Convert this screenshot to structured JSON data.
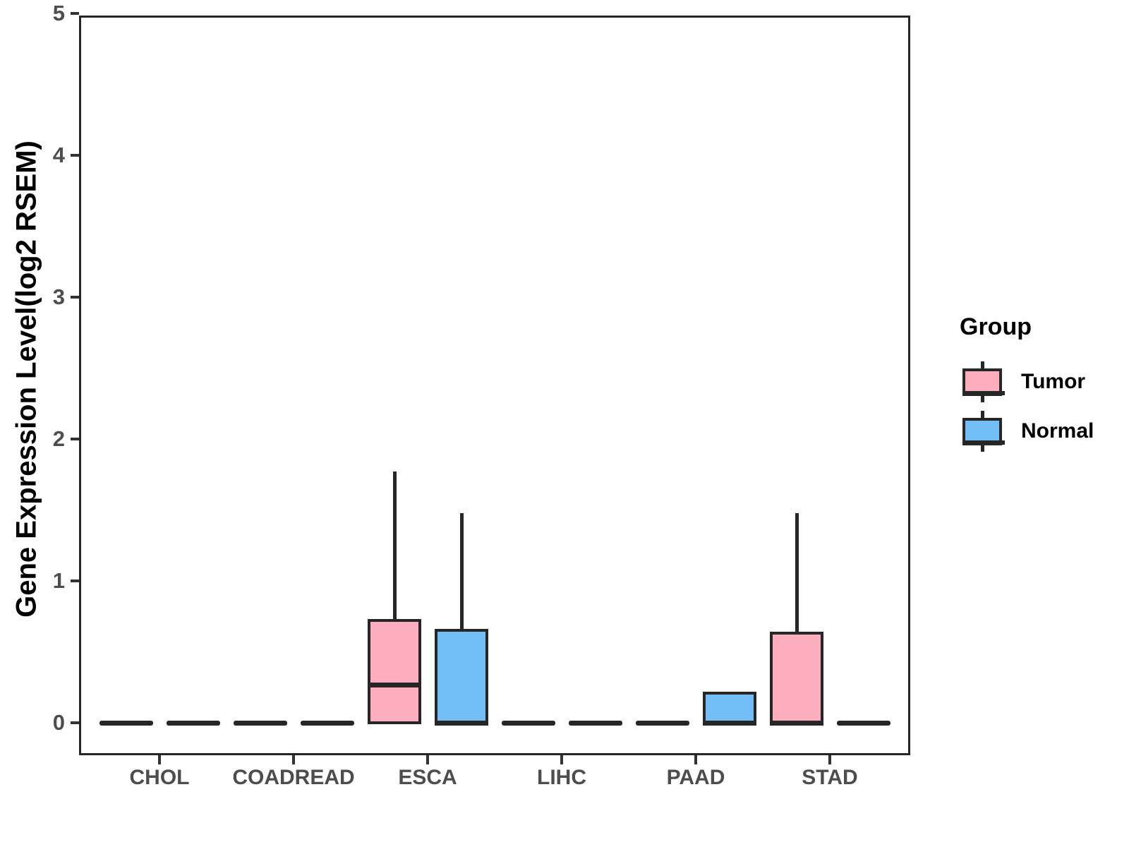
{
  "chart_data": {
    "type": "boxplot",
    "title": "",
    "xlabel": "",
    "ylabel": "Gene Expression Level(log2 RSEM)",
    "ylim": [
      0,
      5
    ],
    "yticks": [
      0,
      1,
      2,
      3,
      4,
      5
    ],
    "categories": [
      "CHOL",
      "COADREAD",
      "ESCA",
      "LIHC",
      "PAAD",
      "STAD"
    ],
    "groups": [
      "Tumor",
      "Normal"
    ],
    "grid": "off",
    "series": [
      {
        "name": "Tumor",
        "color": "#FCAEBE",
        "boxes": [
          {
            "category": "CHOL",
            "min": 0,
            "q1": 0,
            "median": 0,
            "q3": 0,
            "max": 0
          },
          {
            "category": "COADREAD",
            "min": 0,
            "q1": 0,
            "median": 0,
            "q3": 0,
            "max": 0
          },
          {
            "category": "ESCA",
            "min": 0,
            "q1": 0,
            "median": 0.27,
            "q3": 0.72,
            "max": 1.77
          },
          {
            "category": "LIHC",
            "min": 0,
            "q1": 0,
            "median": 0,
            "q3": 0,
            "max": 0
          },
          {
            "category": "PAAD",
            "min": 0,
            "q1": 0,
            "median": 0,
            "q3": 0,
            "max": 0
          },
          {
            "category": "STAD",
            "min": 0,
            "q1": 0,
            "median": 0,
            "q3": 0.63,
            "max": 1.48
          }
        ]
      },
      {
        "name": "Normal",
        "color": "#74BEF8",
        "boxes": [
          {
            "category": "CHOL",
            "min": 0,
            "q1": 0,
            "median": 0,
            "q3": 0,
            "max": 0
          },
          {
            "category": "COADREAD",
            "min": 0,
            "q1": 0,
            "median": 0,
            "q3": 0,
            "max": 0
          },
          {
            "category": "ESCA",
            "min": 0,
            "q1": 0,
            "median": 0,
            "q3": 0.65,
            "max": 1.48
          },
          {
            "category": "LIHC",
            "min": 0,
            "q1": 0,
            "median": 0,
            "q3": 0,
            "max": 0
          },
          {
            "category": "PAAD",
            "min": 0,
            "q1": 0,
            "median": 0,
            "q3": 0.21,
            "max": 0.21
          },
          {
            "category": "STAD",
            "min": 0,
            "q1": 0,
            "median": 0,
            "q3": 0,
            "max": 0
          }
        ]
      }
    ],
    "legend": {
      "title": "Group",
      "position": "right",
      "entries": [
        {
          "label": "Tumor",
          "color": "#FCAEBE"
        },
        {
          "label": "Normal",
          "color": "#74BEF8"
        }
      ]
    },
    "colors": {
      "stroke": "#262626",
      "axis_text": "#4d4d4d",
      "tick_mark": "#333333"
    }
  }
}
